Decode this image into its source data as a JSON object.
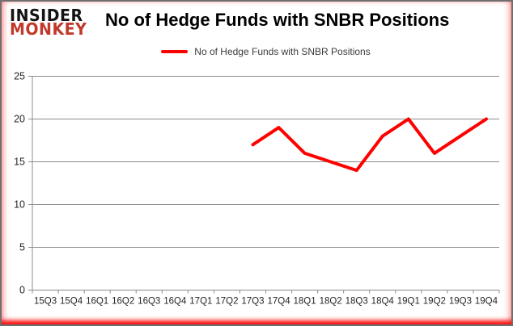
{
  "brand": {
    "line1": "INSIDER",
    "line2": "MONKEY"
  },
  "header": {
    "title": "No of Hedge Funds with SNBR Positions"
  },
  "legend": {
    "label": "No of Hedge Funds with SNBR Positions",
    "line_color": "#ff0000"
  },
  "colors": {
    "series_red": "#ff0000",
    "grid": "#8c8c8c",
    "axis": "#8c8c8c",
    "tick_label": "#262626",
    "window_border": "#6f6f6f",
    "logo_insider": "#131313",
    "logo_monkey": "#c0392b",
    "background": "#ffffff"
  },
  "chart_data": {
    "type": "line",
    "title": "No of Hedge Funds with SNBR Positions",
    "categories": [
      "15Q3",
      "15Q4",
      "16Q1",
      "16Q2",
      "16Q3",
      "16Q4",
      "17Q1",
      "17Q2",
      "17Q3",
      "17Q4",
      "18Q1",
      "18Q2",
      "18Q3",
      "18Q4",
      "19Q1",
      "19Q2",
      "19Q3",
      "19Q4"
    ],
    "series": [
      {
        "name": "No of Hedge Funds with SNBR Positions",
        "color": "#ff0000",
        "values": [
          null,
          null,
          null,
          null,
          null,
          null,
          null,
          null,
          17,
          19,
          16,
          15,
          14,
          18,
          20,
          16,
          18,
          20
        ]
      }
    ],
    "xlabel": "",
    "ylabel": "",
    "ylim": [
      0,
      25
    ],
    "ytick_interval": 5,
    "yticks": [
      0,
      5,
      10,
      15,
      20,
      25
    ],
    "grid": "horizontal",
    "legend_position": "top-center",
    "line_width": 4
  }
}
